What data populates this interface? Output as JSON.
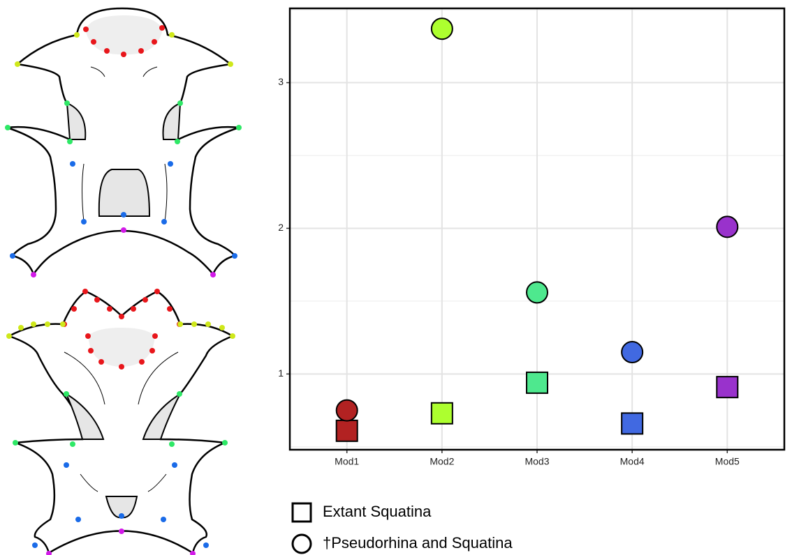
{
  "chart_data": {
    "type": "scatter",
    "categories": [
      "Mod1",
      "Mod2",
      "Mod3",
      "Mod4",
      "Mod5"
    ],
    "colors": [
      "#b22222",
      "#adff2f",
      "#4ee88e",
      "#4169e1",
      "#9932cc"
    ],
    "series": [
      {
        "name": "Extant Squatina",
        "marker": "square",
        "values": [
          0.61,
          0.73,
          0.94,
          0.66,
          0.91
        ]
      },
      {
        "name": "†Pseudorhina and Squatina",
        "marker": "circle",
        "values": [
          0.75,
          3.37,
          1.56,
          1.15,
          2.01
        ]
      }
    ],
    "ylim": [
      0.48,
      3.51
    ],
    "yticks": [
      1,
      2,
      3
    ],
    "yminorticks": [
      0.5,
      1.5,
      2.5,
      3.5
    ],
    "grid": true
  }
}
